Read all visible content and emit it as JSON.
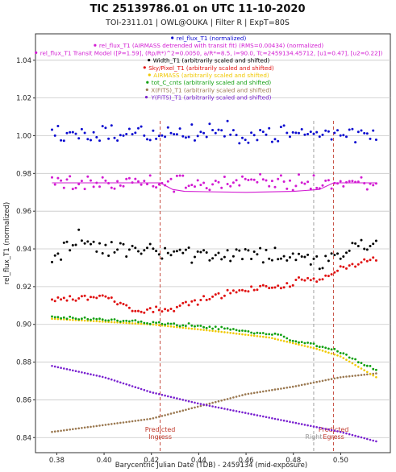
{
  "chart_data": {
    "type": "scatter",
    "title": "TIC 25139786.01 on UTC 11-10-2020",
    "subtitle": "TOI-2311.01 | OWL@OUKA | Filter R | ExpT=80S",
    "xlabel": "Barycentric Julian Date (TDB) - 2459134 (mid-exposure)",
    "ylabel": "rel_flux_T1 (normalized)",
    "xlim": [
      0.371,
      0.521
    ],
    "ylim": [
      0.832,
      1.054
    ],
    "x_ticks": [
      0.38,
      0.4,
      0.42,
      0.44,
      0.46,
      0.48,
      0.5
    ],
    "x_tick_labels": [
      "0.38",
      "0.40",
      "0.42",
      "0.44",
      "0.46",
      "0.48",
      "0.50"
    ],
    "y_ticks": [
      0.84,
      0.86,
      0.88,
      0.9,
      0.92,
      0.94,
      0.96,
      0.98,
      1.0,
      1.02,
      1.04
    ],
    "y_tick_labels": [
      "0.84",
      "0.86",
      "0.88",
      "0.90",
      "0.92",
      "0.94",
      "0.96",
      "0.98",
      "1.00",
      "1.02",
      "1.04"
    ],
    "grid": "horizontal",
    "legend_placement": "top-center",
    "legend": [
      {
        "label": "rel_flux_T1 (normalized)",
        "color": "#0b0bd0"
      },
      {
        "label": "rel_flux_T1 (AIRMASS detrended with transit fit) (RMS=0.00434) (normalized)",
        "color": "#d21bd2"
      },
      {
        "label": "rel_flux_T1 Transit Model ([P=1.59], (Rp/R*)^2=0.0050, a/R*=8.5, i=90.0, Tc=2459134.45712, [u1=0.47], [u2=0.22])",
        "color": "#d21bd2"
      },
      {
        "label": "Width_T1 (arbitrarily scaled and shifted)",
        "color": "#000000"
      },
      {
        "label": "Sky/Pixel_T1 (arbitrarily scaled and shifted)",
        "color": "#e01010"
      },
      {
        "label": "AIRMASS (arbitrarily scaled and shifted)",
        "color": "#f0c800"
      },
      {
        "label": "tot_C_cnts (arbitrarily scaled and shifted)",
        "color": "#10a010"
      },
      {
        "label": "X(FITS)_T1 (arbitrarily scaled and shifted)",
        "color": "#9a7850"
      },
      {
        "label": "Y(FITS)_T1 (arbitrarily scaled and shifted)",
        "color": "#7a22d0"
      }
    ],
    "vlines": [
      {
        "x": 0.4237,
        "color": "#c0392b",
        "label": [
          "Predicted",
          "Ingress"
        ],
        "label_color": "#c0392b"
      },
      {
        "x": 0.4886,
        "color": "#999999",
        "label": [
          "Right"
        ],
        "label_color": "#999999"
      },
      {
        "x": 0.497,
        "color": "#c0392b",
        "label": [
          "Predicted",
          "Egress"
        ],
        "label_color": "#c0392b"
      }
    ],
    "series_meta": {
      "x_start": 0.378,
      "x_end": 0.515,
      "n_points": 110,
      "rel_flux_normalized": {
        "color": "#0b0bd0",
        "mean": 1.001,
        "scatter": 0.005
      },
      "rel_flux_detrended": {
        "color": "#d21bd2",
        "mean": 0.975,
        "scatter": 0.0045
      },
      "width": {
        "color": "#000000",
        "segments": [
          [
            0.378,
            0.934
          ],
          [
            0.39,
            0.945
          ],
          [
            0.4,
            0.94
          ],
          [
            0.42,
            0.941
          ],
          [
            0.44,
            0.937
          ],
          [
            0.46,
            0.938
          ],
          [
            0.48,
            0.936
          ],
          [
            0.49,
            0.932
          ],
          [
            0.5,
            0.937
          ],
          [
            0.515,
            0.944
          ]
        ],
        "scatter": 0.005
      },
      "sky": {
        "color": "#e01010",
        "segments": [
          [
            0.378,
            0.913
          ],
          [
            0.4,
            0.915
          ],
          [
            0.415,
            0.907
          ],
          [
            0.43,
            0.909
          ],
          [
            0.45,
            0.916
          ],
          [
            0.47,
            0.92
          ],
          [
            0.48,
            0.921
          ],
          [
            0.482,
            0.924
          ],
          [
            0.49,
            0.923
          ],
          [
            0.5,
            0.93
          ],
          [
            0.515,
            0.935
          ]
        ],
        "scatter": 0.0015
      },
      "airmass": {
        "color": "#f0c800",
        "segments": [
          [
            0.378,
            0.903
          ],
          [
            0.42,
            0.9
          ],
          [
            0.45,
            0.896
          ],
          [
            0.47,
            0.893
          ],
          [
            0.49,
            0.887
          ],
          [
            0.5,
            0.883
          ],
          [
            0.515,
            0.872
          ]
        ]
      },
      "tot_cnts": {
        "color": "#10a010",
        "segments": [
          [
            0.378,
            0.904
          ],
          [
            0.42,
            0.901
          ],
          [
            0.45,
            0.898
          ],
          [
            0.475,
            0.894
          ],
          [
            0.48,
            0.891
          ],
          [
            0.49,
            0.889
          ],
          [
            0.5,
            0.885
          ],
          [
            0.515,
            0.876
          ]
        ],
        "scatter": 0.0008
      },
      "x_fits": {
        "color": "#9a7850",
        "segments": [
          [
            0.378,
            0.843
          ],
          [
            0.42,
            0.85
          ],
          [
            0.46,
            0.863
          ],
          [
            0.48,
            0.867
          ],
          [
            0.5,
            0.872
          ],
          [
            0.515,
            0.874
          ]
        ]
      },
      "y_fits": {
        "color": "#7a22d0",
        "segments": [
          [
            0.378,
            0.878
          ],
          [
            0.4,
            0.872
          ],
          [
            0.42,
            0.864
          ],
          [
            0.44,
            0.858
          ],
          [
            0.46,
            0.853
          ],
          [
            0.48,
            0.848
          ],
          [
            0.5,
            0.843
          ],
          [
            0.515,
            0.838
          ]
        ]
      }
    },
    "transit_model": {
      "color": "#d21bd2",
      "points": [
        [
          0.378,
          0.975
        ],
        [
          0.4237,
          0.975
        ],
        [
          0.429,
          0.9715
        ],
        [
          0.434,
          0.9705
        ],
        [
          0.46,
          0.97
        ],
        [
          0.48,
          0.9705
        ],
        [
          0.491,
          0.9715
        ],
        [
          0.497,
          0.975
        ],
        [
          0.515,
          0.975
        ]
      ]
    }
  }
}
